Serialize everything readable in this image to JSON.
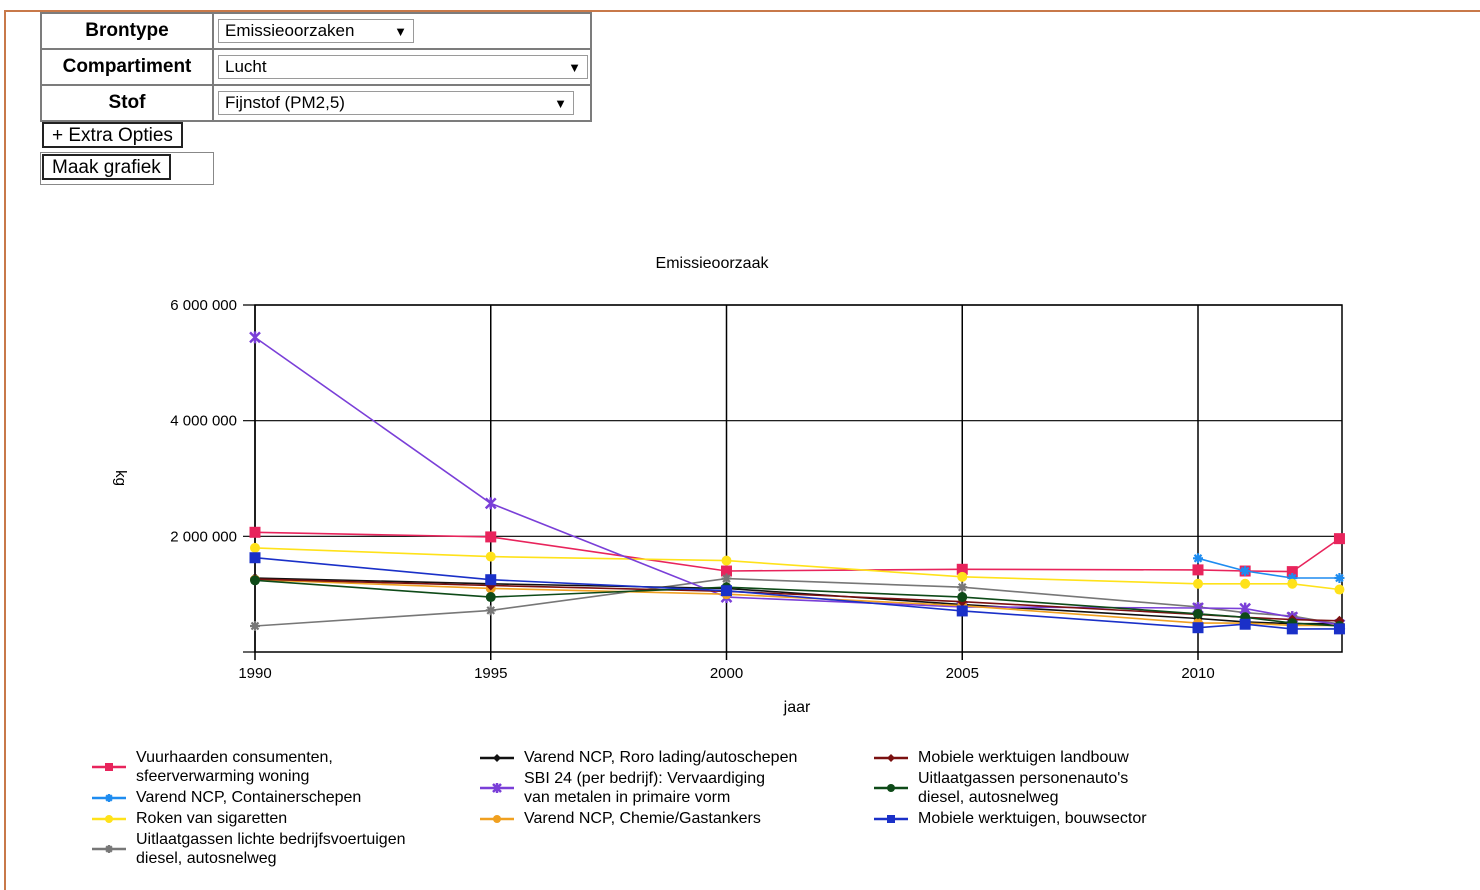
{
  "form": {
    "rows": [
      {
        "label": "Brontype",
        "value": "Emissieoorzaken"
      },
      {
        "label": "Compartiment",
        "value": "Lucht"
      },
      {
        "label": "Stof",
        "value": "Fijnstof (PM2,5)"
      }
    ],
    "extra_options_label": "+ Extra Opties",
    "make_chart_label": "Maak grafiek"
  },
  "chart_data": {
    "type": "line",
    "title": "Emissieoorzaak",
    "xlabel": "jaar",
    "ylabel": "kg",
    "xlim": [
      1990,
      2013
    ],
    "ylim": [
      0,
      6000000
    ],
    "xticks": [
      1990,
      1995,
      2000,
      2005,
      2010
    ],
    "xtick_labels": [
      "1990",
      "1995",
      "2000",
      "2005",
      "2010"
    ],
    "yticks": [
      2000000,
      4000000,
      6000000
    ],
    "ytick_labels": [
      "2 000 000",
      "4 000 000",
      "6 000 000"
    ],
    "grid": true,
    "legend_position": "bottom",
    "series": [
      {
        "name": "Vuurhaarden consumenten, sfeerverwarming woning",
        "color": "#e8245c",
        "marker": "square",
        "points": [
          [
            1990,
            2070000
          ],
          [
            1995,
            1990000
          ],
          [
            2000,
            1400000
          ],
          [
            2005,
            1430000
          ],
          [
            2010,
            1420000
          ],
          [
            2011,
            1400000
          ],
          [
            2012,
            1390000
          ],
          [
            2013,
            1960000
          ]
        ]
      },
      {
        "name": "Varend NCP, Containerschepen",
        "color": "#1e8cf0",
        "marker": "star",
        "points": [
          [
            2010,
            1620000
          ],
          [
            2011,
            1400000
          ],
          [
            2012,
            1280000
          ],
          [
            2013,
            1280000
          ]
        ]
      },
      {
        "name": "Roken van sigaretten",
        "color": "#ffe21a",
        "marker": "circle",
        "points": [
          [
            1990,
            1800000
          ],
          [
            1995,
            1650000
          ],
          [
            2000,
            1580000
          ],
          [
            2005,
            1300000
          ],
          [
            2010,
            1180000
          ],
          [
            2011,
            1180000
          ],
          [
            2012,
            1180000
          ],
          [
            2013,
            1080000
          ]
        ]
      },
      {
        "name": "Uitlaatgassen lichte bedrijfsvoertuigen diesel, autosnelweg",
        "color": "#777777",
        "marker": "star",
        "points": [
          [
            1990,
            450000
          ],
          [
            1995,
            720000
          ],
          [
            2000,
            1270000
          ],
          [
            2005,
            1120000
          ],
          [
            2010,
            780000
          ],
          [
            2011,
            680000
          ],
          [
            2012,
            620000
          ],
          [
            2013,
            480000
          ]
        ]
      },
      {
        "name": "Varend NCP, Roro lading/autoschepen",
        "color": "#111111",
        "marker": "diamond",
        "points": [
          [
            1990,
            1280000
          ],
          [
            1995,
            1180000
          ],
          [
            2000,
            1100000
          ],
          [
            2005,
            820000
          ],
          [
            2010,
            580000
          ],
          [
            2011,
            520000
          ],
          [
            2012,
            490000
          ],
          [
            2013,
            490000
          ]
        ]
      },
      {
        "name": "SBI 24 (per bedrijf): Vervaardiging van metalen in primaire vorm",
        "color": "#7a3fd8",
        "marker": "x",
        "points": [
          [
            1990,
            5440000
          ],
          [
            1995,
            2570000
          ],
          [
            2000,
            950000
          ],
          [
            2005,
            780000
          ],
          [
            2010,
            760000
          ],
          [
            2011,
            750000
          ],
          [
            2012,
            600000
          ],
          [
            2013,
            470000
          ]
        ]
      },
      {
        "name": "Varend NCP, Chemie/Gastankers",
        "color": "#f0a020",
        "marker": "circle",
        "points": [
          [
            1990,
            1250000
          ],
          [
            1995,
            1100000
          ],
          [
            2000,
            1000000
          ],
          [
            2005,
            800000
          ],
          [
            2010,
            500000
          ],
          [
            2011,
            500000
          ],
          [
            2012,
            460000
          ],
          [
            2013,
            460000
          ]
        ]
      },
      {
        "name": "Mobiele werktuigen landbouw",
        "color": "#7a1010",
        "marker": "diamond",
        "points": [
          [
            1990,
            1260000
          ],
          [
            1995,
            1150000
          ],
          [
            2000,
            1050000
          ],
          [
            2005,
            870000
          ],
          [
            2010,
            650000
          ],
          [
            2011,
            600000
          ],
          [
            2012,
            560000
          ],
          [
            2013,
            540000
          ]
        ]
      },
      {
        "name": "Uitlaatgassen personenauto's diesel, autosnelweg",
        "color": "#0e4a18",
        "marker": "circle",
        "points": [
          [
            1990,
            1240000
          ],
          [
            1995,
            950000
          ],
          [
            2000,
            1120000
          ],
          [
            2005,
            950000
          ],
          [
            2010,
            660000
          ],
          [
            2011,
            600000
          ],
          [
            2012,
            500000
          ],
          [
            2013,
            450000
          ]
        ]
      },
      {
        "name": "Mobiele werktuigen, bouwsector",
        "color": "#1a30c8",
        "marker": "square",
        "points": [
          [
            1990,
            1630000
          ],
          [
            1995,
            1250000
          ],
          [
            2000,
            1060000
          ],
          [
            2005,
            710000
          ],
          [
            2010,
            420000
          ],
          [
            2011,
            480000
          ],
          [
            2012,
            400000
          ],
          [
            2013,
            400000
          ]
        ]
      }
    ]
  },
  "legend_layout": [
    {
      "series": 0,
      "lines": [
        "Vuurhaarden consumenten,",
        "sfeerverwarming woning"
      ]
    },
    {
      "series": 1,
      "lines": [
        "Varend NCP, Containerschepen"
      ]
    },
    {
      "series": 2,
      "lines": [
        "Roken van sigaretten"
      ]
    },
    {
      "series": 3,
      "lines": [
        "Uitlaatgassen lichte bedrijfsvoertuigen",
        "diesel, autosnelweg"
      ]
    },
    {
      "series": 4,
      "lines": [
        "Varend NCP, Roro lading/autoschepen"
      ]
    },
    {
      "series": 5,
      "lines": [
        "SBI 24 (per bedrijf): Vervaardiging",
        "van metalen in primaire vorm"
      ]
    },
    {
      "series": 6,
      "lines": [
        "Varend NCP, Chemie/Gastankers"
      ]
    },
    {
      "series": 7,
      "lines": [
        "Mobiele werktuigen landbouw"
      ]
    },
    {
      "series": 8,
      "lines": [
        "Uitlaatgassen personenauto's",
        "diesel, autosnelweg"
      ]
    },
    {
      "series": 9,
      "lines": [
        "Mobiele werktuigen, bouwsector"
      ]
    }
  ]
}
